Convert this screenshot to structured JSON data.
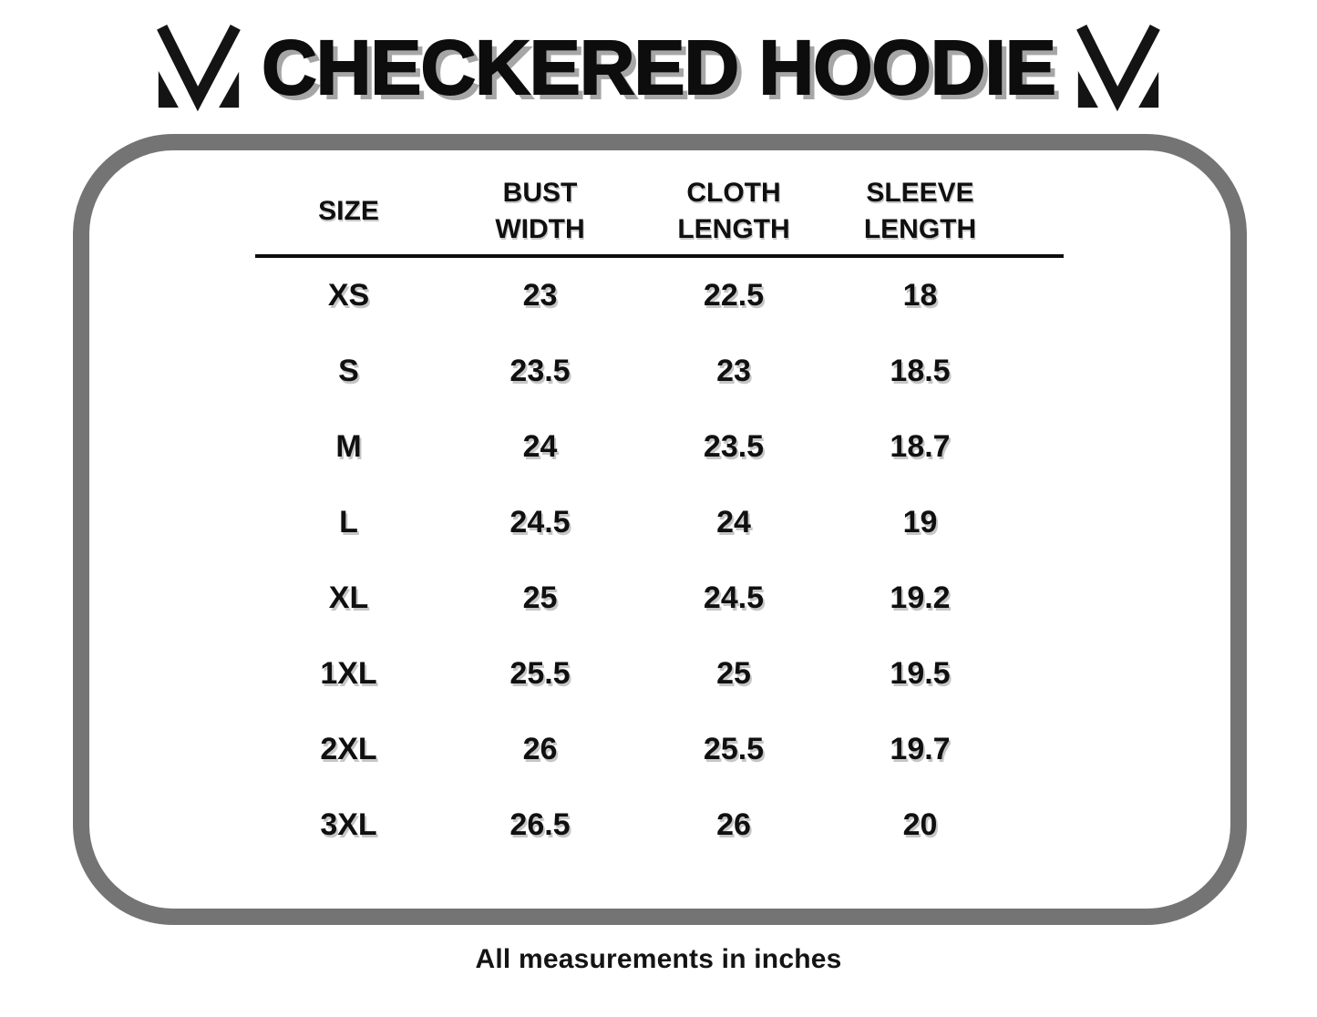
{
  "header": {
    "title": "CHECKERED HOODIE",
    "left_logo": "brand-m-logo",
    "right_logo": "brand-m-logo"
  },
  "size_chart": {
    "columns": [
      "SIZE",
      "BUST WIDTH",
      "CLOTH LENGTH",
      "SLEEVE LENGTH"
    ],
    "rows": [
      [
        "XS",
        "23",
        "22.5",
        "18"
      ],
      [
        "S",
        "23.5",
        "23",
        "18.5"
      ],
      [
        "M",
        "24",
        "23.5",
        "18.7"
      ],
      [
        "L",
        "24.5",
        "24",
        "19"
      ],
      [
        "XL",
        "25",
        "24.5",
        "19.2"
      ],
      [
        "1XL",
        "25.5",
        "25",
        "19.5"
      ],
      [
        "2XL",
        "26",
        "25.5",
        "19.7"
      ],
      [
        "3XL",
        "26.5",
        "26",
        "20"
      ]
    ]
  },
  "footnote": "All measurements in inches",
  "colors": {
    "background": "#ffffff",
    "text": "#0d0d0d",
    "title_shadow": "#a6a6a6",
    "panel_border": "#747474"
  }
}
